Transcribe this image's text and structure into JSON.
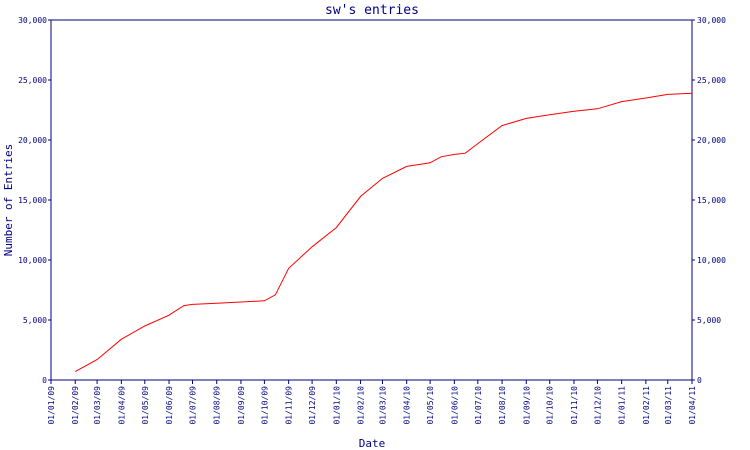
{
  "chart_data": {
    "type": "line",
    "title": "sw's entries",
    "xlabel": "Date",
    "ylabel": "Number of Entries",
    "ylim": [
      0,
      30000
    ],
    "yticks": [
      "0",
      "5,000",
      "10,000",
      "15,000",
      "20,000",
      "25,000",
      "30,000"
    ],
    "xticks": [
      "01/01/09",
      "01/02/09",
      "01/03/09",
      "01/04/09",
      "01/05/09",
      "01/06/09",
      "01/07/09",
      "01/08/09",
      "01/09/09",
      "01/10/09",
      "01/11/09",
      "01/12/09",
      "01/01/10",
      "01/02/10",
      "01/03/10",
      "01/04/10",
      "01/05/10",
      "01/06/10",
      "01/07/10",
      "01/08/10",
      "01/09/10",
      "01/10/10",
      "01/11/10",
      "01/12/10",
      "01/01/11",
      "01/02/11",
      "01/03/11",
      "01/04/11"
    ],
    "grid": false,
    "colors": {
      "line": "#ff0000",
      "axis": "#000080",
      "text": "#000080"
    },
    "series": [
      {
        "points": [
          [
            "01/02/09",
            700
          ],
          [
            "01/03/09",
            1700
          ],
          [
            "01/04/09",
            3400
          ],
          [
            "01/05/09",
            4500
          ],
          [
            "01/06/09",
            5400
          ],
          [
            "20/06/09",
            6200
          ],
          [
            "01/07/09",
            6300
          ],
          [
            "01/08/09",
            6400
          ],
          [
            "01/09/09",
            6500
          ],
          [
            "01/10/09",
            6600
          ],
          [
            "15/10/09",
            7100
          ],
          [
            "01/11/09",
            9300
          ],
          [
            "01/12/09",
            11100
          ],
          [
            "01/01/10",
            12700
          ],
          [
            "01/02/10",
            15300
          ],
          [
            "01/03/10",
            16800
          ],
          [
            "01/04/10",
            17800
          ],
          [
            "01/05/10",
            18100
          ],
          [
            "15/05/10",
            18600
          ],
          [
            "01/06/10",
            18800
          ],
          [
            "15/06/10",
            18900
          ],
          [
            "01/07/10",
            19700
          ],
          [
            "01/08/10",
            21200
          ],
          [
            "01/09/10",
            21800
          ],
          [
            "01/10/10",
            22100
          ],
          [
            "01/11/10",
            22400
          ],
          [
            "01/12/10",
            22600
          ],
          [
            "01/01/11",
            23200
          ],
          [
            "01/02/11",
            23500
          ],
          [
            "01/03/11",
            23800
          ],
          [
            "01/04/11",
            23900
          ]
        ]
      }
    ]
  }
}
